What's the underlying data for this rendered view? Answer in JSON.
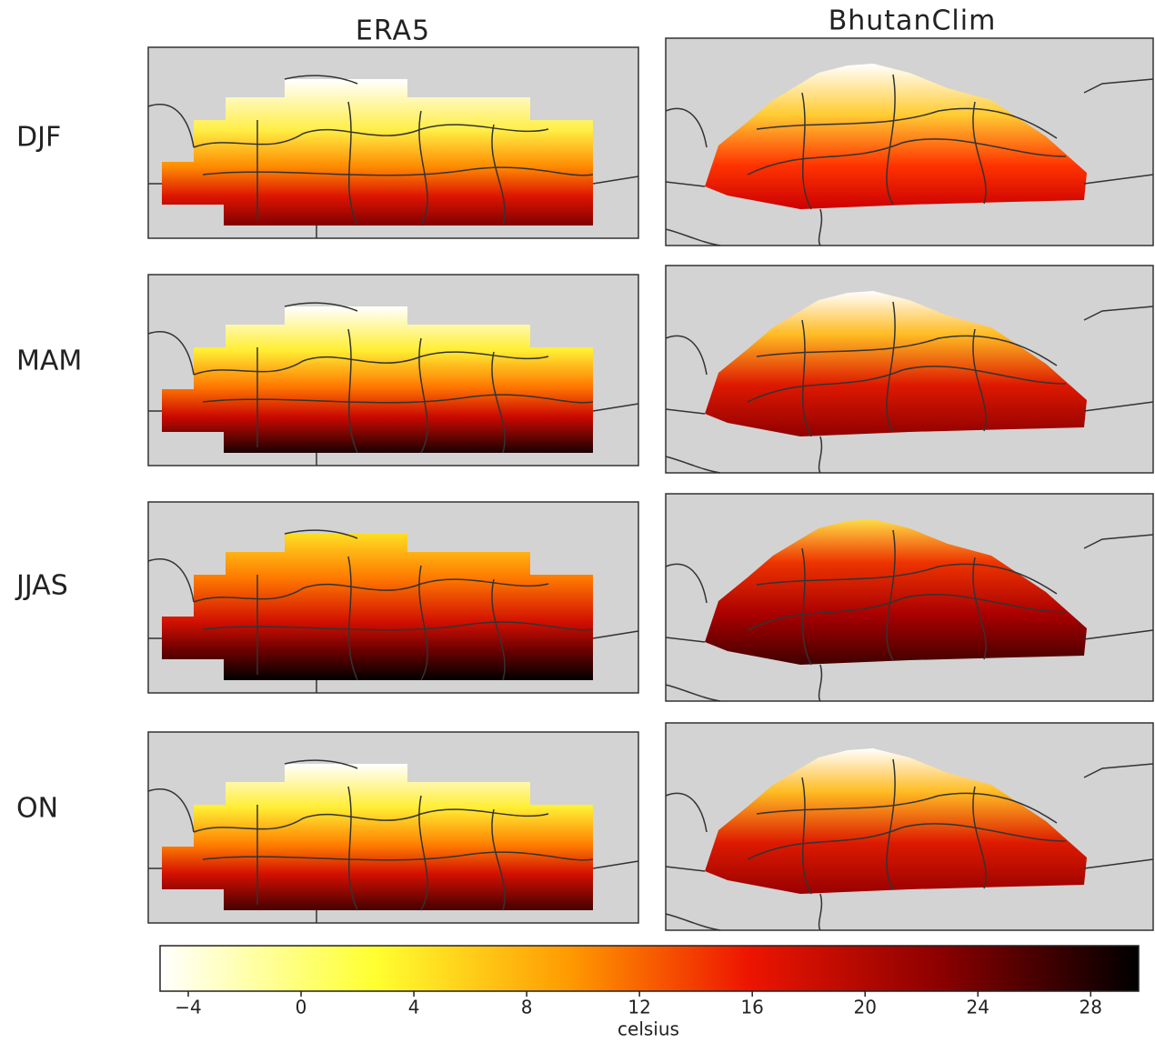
{
  "columns": [
    "ERA5",
    "BhutanClim"
  ],
  "rows": [
    "DJF",
    "MAM",
    "JJAS",
    "ON"
  ],
  "colorbar": {
    "label": "celsius",
    "lim": [
      -5,
      29.7
    ],
    "ticks": [
      {
        "value": -4,
        "label": "−4"
      },
      0,
      4,
      8,
      12,
      16,
      20,
      24,
      28
    ]
  }
}
